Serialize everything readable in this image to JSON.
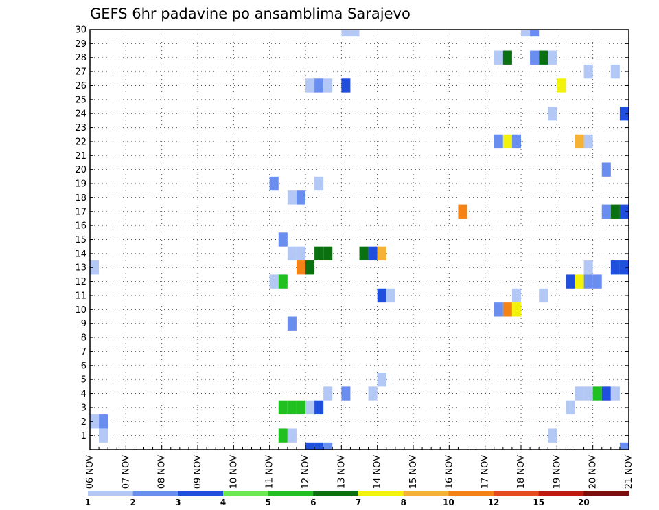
{
  "chart_data": {
    "type": "heatmap",
    "title": "GEFS 6hr padavine po ansamblima Sarajevo",
    "xlabel": "",
    "ylabel": "",
    "x_start": "06 NOV",
    "x_end": "21 NOV",
    "x_step_hours": 6,
    "x_tick_labels": [
      "06 NOV",
      "07 NOV",
      "08 NOV",
      "09 NOV",
      "10 NOV",
      "11 NOV",
      "12 NOV",
      "13 NOV",
      "14 NOV",
      "15 NOV",
      "16 NOV",
      "17 NOV",
      "18 NOV",
      "19 NOV",
      "20 NOV",
      "21 NOV"
    ],
    "y_tick_labels": [
      "1",
      "2",
      "3",
      "4",
      "5",
      "6",
      "7",
      "8",
      "9",
      "10",
      "11",
      "12",
      "13",
      "14",
      "15",
      "16",
      "17",
      "18",
      "19",
      "20",
      "21",
      "22",
      "23",
      "24",
      "25",
      "26",
      "27",
      "28",
      "29",
      "30"
    ],
    "ylim": [
      0,
      30
    ],
    "grid": true,
    "legend": {
      "placement": "bottom",
      "thresholds": [
        1,
        2,
        3,
        4,
        5,
        6,
        7,
        8,
        10,
        12,
        15,
        20
      ],
      "tick_labels": [
        "1",
        "2",
        "3",
        "4",
        "5",
        "6",
        "7",
        "8",
        "10",
        "12",
        "15",
        "20"
      ],
      "colors": [
        "#b4c8f5",
        "#6a8ef0",
        "#1f4fdc",
        "#6bea4f",
        "#20c020",
        "#0a7010",
        "#f2f20a",
        "#f5b237",
        "#f58214",
        "#e44c1e",
        "#be1a14",
        "#7d0c0c"
      ]
    },
    "cells": [
      {
        "member": 30,
        "day": 13.0,
        "value": 1.5
      },
      {
        "member": 30,
        "day": 13.25,
        "value": 1.5
      },
      {
        "member": 30,
        "day": 18.0,
        "value": 1.5
      },
      {
        "member": 30,
        "day": 18.25,
        "value": 2.5
      },
      {
        "member": 28,
        "day": 17.25,
        "value": 1.5
      },
      {
        "member": 28,
        "day": 17.5,
        "value": 6.5
      },
      {
        "member": 28,
        "day": 18.25,
        "value": 2.5
      },
      {
        "member": 28,
        "day": 18.5,
        "value": 6.5
      },
      {
        "member": 28,
        "day": 18.75,
        "value": 1.5
      },
      {
        "member": 27,
        "day": 19.75,
        "value": 1.5
      },
      {
        "member": 27,
        "day": 20.5,
        "value": 1.5
      },
      {
        "member": 26,
        "day": 12.0,
        "value": 1.5
      },
      {
        "member": 26,
        "day": 12.25,
        "value": 2.5
      },
      {
        "member": 26,
        "day": 12.5,
        "value": 1.5
      },
      {
        "member": 26,
        "day": 13.0,
        "value": 3.5
      },
      {
        "member": 26,
        "day": 19.0,
        "value": 7.5
      },
      {
        "member": 24,
        "day": 18.75,
        "value": 1.5
      },
      {
        "member": 24,
        "day": 20.75,
        "value": 3.5
      },
      {
        "member": 22,
        "day": 17.25,
        "value": 2.5
      },
      {
        "member": 22,
        "day": 17.5,
        "value": 7.5
      },
      {
        "member": 22,
        "day": 17.75,
        "value": 2.5
      },
      {
        "member": 22,
        "day": 19.5,
        "value": 8.5
      },
      {
        "member": 22,
        "day": 19.75,
        "value": 1.5
      },
      {
        "member": 20,
        "day": 20.25,
        "value": 2.5
      },
      {
        "member": 19,
        "day": 11.0,
        "value": 2.5
      },
      {
        "member": 19,
        "day": 12.25,
        "value": 1.5
      },
      {
        "member": 18,
        "day": 11.5,
        "value": 1.5
      },
      {
        "member": 18,
        "day": 11.75,
        "value": 2.5
      },
      {
        "member": 17,
        "day": 16.25,
        "value": 10.5
      },
      {
        "member": 17,
        "day": 20.25,
        "value": 2.5
      },
      {
        "member": 17,
        "day": 20.5,
        "value": 6.5
      },
      {
        "member": 17,
        "day": 20.75,
        "value": 3.5
      },
      {
        "member": 15,
        "day": 11.25,
        "value": 2.5
      },
      {
        "member": 14,
        "day": 11.5,
        "value": 1.5
      },
      {
        "member": 14,
        "day": 11.75,
        "value": 1.5
      },
      {
        "member": 14,
        "day": 12.25,
        "value": 6.5
      },
      {
        "member": 14,
        "day": 12.5,
        "value": 6.5
      },
      {
        "member": 14,
        "day": 13.5,
        "value": 6.5
      },
      {
        "member": 14,
        "day": 13.75,
        "value": 3.5
      },
      {
        "member": 14,
        "day": 14.0,
        "value": 8.5
      },
      {
        "member": 13,
        "day": 6.0,
        "value": 1.5
      },
      {
        "member": 13,
        "day": 11.75,
        "value": 10.5
      },
      {
        "member": 13,
        "day": 12.0,
        "value": 6.5
      },
      {
        "member": 13,
        "day": 19.75,
        "value": 1.5
      },
      {
        "member": 13,
        "day": 20.5,
        "value": 3.5
      },
      {
        "member": 13,
        "day": 20.75,
        "value": 3.5
      },
      {
        "member": 12,
        "day": 11.0,
        "value": 1.5
      },
      {
        "member": 12,
        "day": 11.25,
        "value": 5.5
      },
      {
        "member": 12,
        "day": 19.25,
        "value": 3.5
      },
      {
        "member": 12,
        "day": 19.5,
        "value": 7.5
      },
      {
        "member": 12,
        "day": 19.75,
        "value": 2.5
      },
      {
        "member": 12,
        "day": 20.0,
        "value": 2.5
      },
      {
        "member": 11,
        "day": 14.0,
        "value": 3.5
      },
      {
        "member": 11,
        "day": 14.25,
        "value": 1.5
      },
      {
        "member": 11,
        "day": 17.75,
        "value": 1.5
      },
      {
        "member": 11,
        "day": 18.5,
        "value": 1.5
      },
      {
        "member": 10,
        "day": 17.25,
        "value": 2.5
      },
      {
        "member": 10,
        "day": 17.5,
        "value": 11.0
      },
      {
        "member": 10,
        "day": 17.75,
        "value": 7.5
      },
      {
        "member": 9,
        "day": 11.5,
        "value": 2.5
      },
      {
        "member": 5,
        "day": 14.0,
        "value": 1.5
      },
      {
        "member": 4,
        "day": 12.5,
        "value": 1.5
      },
      {
        "member": 4,
        "day": 13.0,
        "value": 2.5
      },
      {
        "member": 4,
        "day": 13.75,
        "value": 1.5
      },
      {
        "member": 4,
        "day": 19.5,
        "value": 1.5
      },
      {
        "member": 4,
        "day": 19.75,
        "value": 1.5
      },
      {
        "member": 4,
        "day": 20.0,
        "value": 5.5
      },
      {
        "member": 4,
        "day": 20.25,
        "value": 3.5
      },
      {
        "member": 4,
        "day": 20.5,
        "value": 1.5
      },
      {
        "member": 3,
        "day": 11.25,
        "value": 5.5
      },
      {
        "member": 3,
        "day": 11.5,
        "value": 5.5
      },
      {
        "member": 3,
        "day": 11.75,
        "value": 5.5
      },
      {
        "member": 3,
        "day": 12.0,
        "value": 1.5
      },
      {
        "member": 3,
        "day": 12.25,
        "value": 3.5
      },
      {
        "member": 3,
        "day": 19.25,
        "value": 1.5
      },
      {
        "member": 2,
        "day": 6.0,
        "value": 1.5
      },
      {
        "member": 2,
        "day": 6.25,
        "value": 2.5
      },
      {
        "member": 1,
        "day": 6.25,
        "value": 1.5
      },
      {
        "member": 1,
        "day": 11.25,
        "value": 5.5
      },
      {
        "member": 1,
        "day": 11.5,
        "value": 1.5
      },
      {
        "member": 1,
        "day": 18.75,
        "value": 1.5
      },
      {
        "member": 0,
        "day": 12.0,
        "value": 3.5
      },
      {
        "member": 0,
        "day": 12.25,
        "value": 3.5
      },
      {
        "member": 0,
        "day": 12.5,
        "value": 2.5
      },
      {
        "member": 0,
        "day": 20.75,
        "value": 2.5
      }
    ]
  }
}
